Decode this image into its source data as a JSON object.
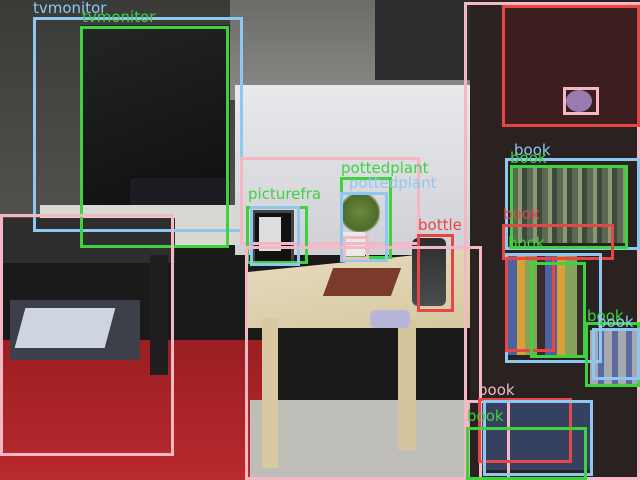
{
  "labels": {
    "tv1": "tvmonitor",
    "tv2": "tvmonitor",
    "picture": "picturefra",
    "plant1": "pottedplant",
    "plant2": "pottedplant",
    "bottle": "bottle",
    "book1": "book",
    "book2": "book",
    "book3": "book",
    "book4": "book",
    "book5": "book",
    "book6": "book",
    "book7": "book",
    "book8": "book"
  },
  "colors": {
    "blue": "#8ec8f0",
    "green": "#3fd23f",
    "pink": "#f3b8c4",
    "red": "#e64646"
  }
}
